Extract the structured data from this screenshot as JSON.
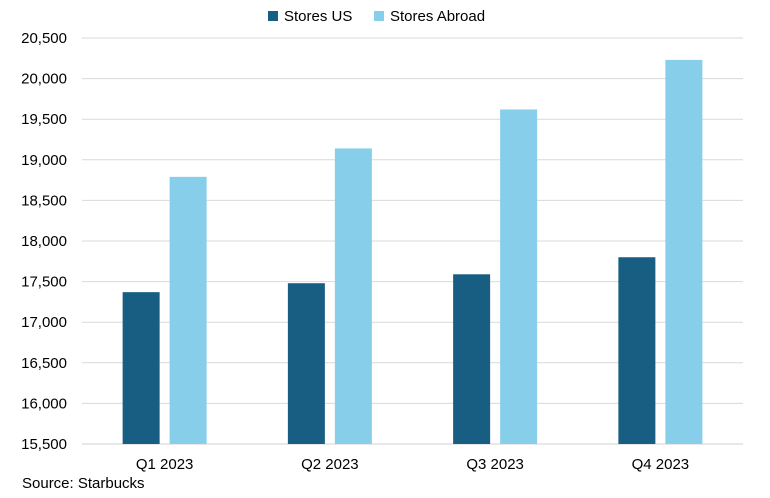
{
  "chart_data": {
    "type": "bar",
    "categories": [
      "Q1 2023",
      "Q2 2023",
      "Q3 2023",
      "Q4 2023"
    ],
    "series": [
      {
        "name": "Stores US",
        "values": [
          17370,
          17480,
          17590,
          17800
        ],
        "color": "#175e82"
      },
      {
        "name": "Stores Abroad",
        "values": [
          18790,
          19140,
          19620,
          20230
        ],
        "color": "#87ceeb"
      }
    ],
    "title": "",
    "xlabel": "",
    "ylabel": "",
    "ylim": [
      15500,
      20500
    ],
    "yticks": [
      "15,500",
      "16,000",
      "16,500",
      "17,000",
      "17,500",
      "18,000",
      "18,500",
      "19,000",
      "19,500",
      "20,000",
      "20,500"
    ],
    "grid": true,
    "legend_position": "top-center"
  },
  "source": "Source: Starbucks"
}
